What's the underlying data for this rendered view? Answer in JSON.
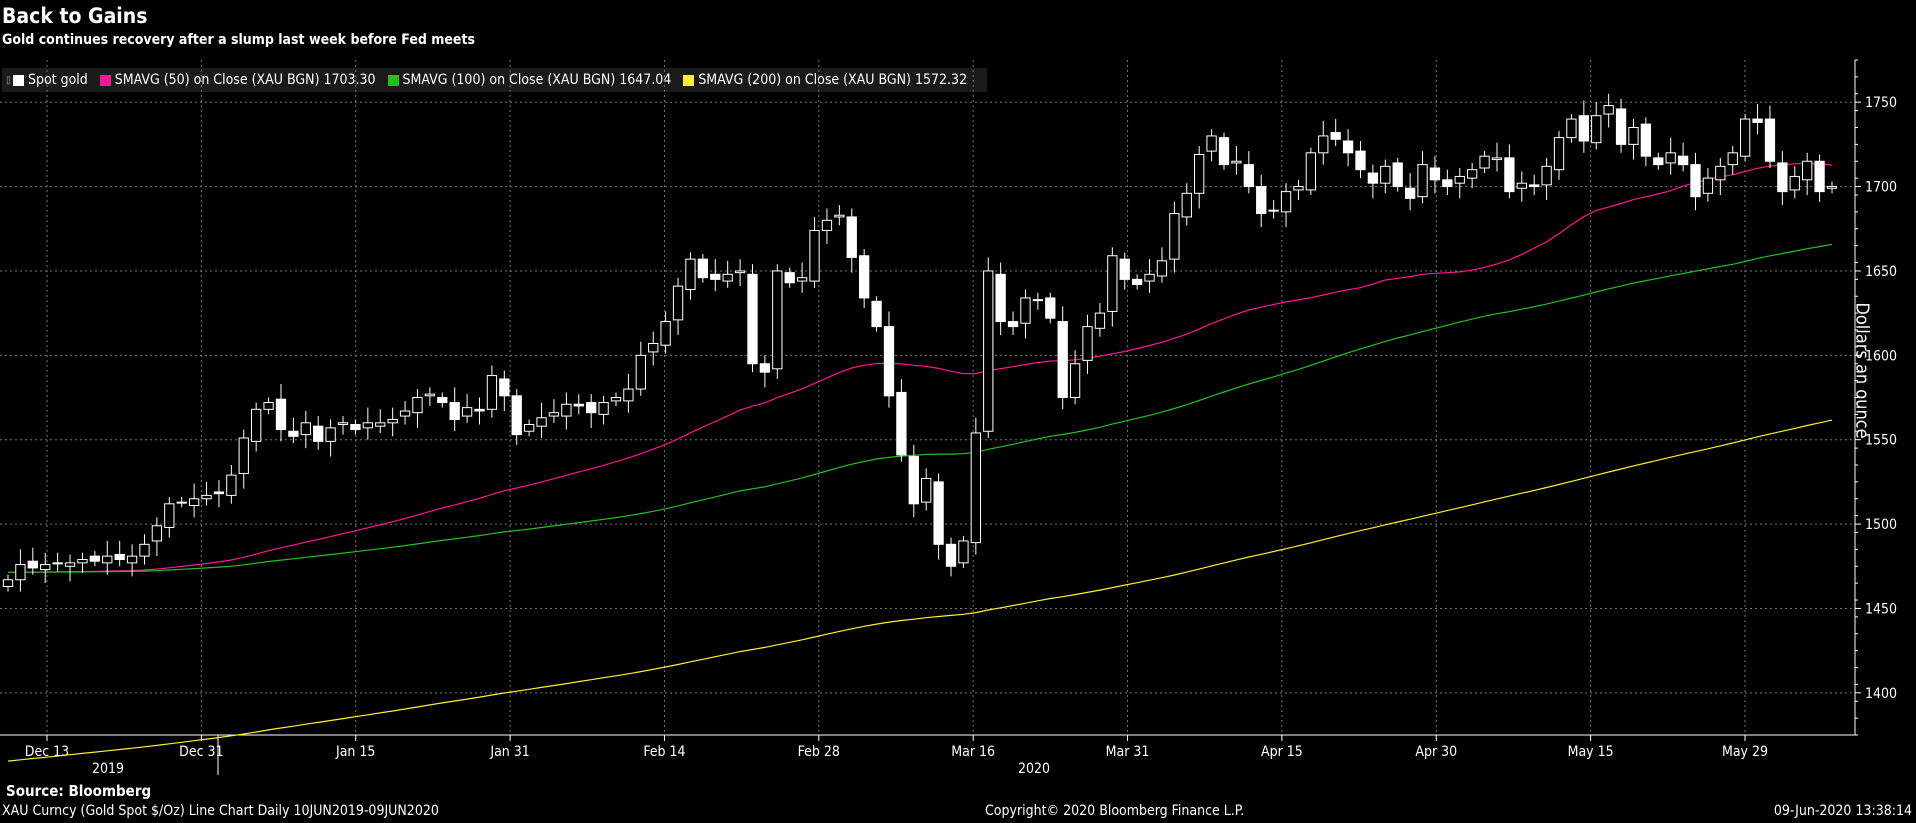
{
  "header": {
    "title": "Back to Gains",
    "subtitle": "Gold continues recovery after a slump last week before Fed meets"
  },
  "legend": [
    {
      "label": "Spot gold",
      "color": "#ffffff"
    },
    {
      "label": "SMAVG (50)  on Close (XAU BGN) 1703.30",
      "color": "#ff1493"
    },
    {
      "label": "SMAVG (100)  on Close (XAU BGN) 1647.04",
      "color": "#22c022"
    },
    {
      "label": "SMAVG (200)  on Close (XAU BGN) 1572.32",
      "color": "#ffee33"
    }
  ],
  "footer": {
    "source": "Source:  Bloomberg",
    "left": "XAU Curncy (Gold Spot   $/Oz) Line Chart  Daily 10JUN2019-09JUN2020",
    "center": "Copyright© 2020 Bloomberg Finance L.P.",
    "right": "09-Jun-2020 13:38:14"
  },
  "chart_data": {
    "type": "candlestick",
    "title": "Back to Gains",
    "ylabel": "Dollars an ounce",
    "ylim": [
      1375,
      1775
    ],
    "yticks": [
      1400,
      1450,
      1500,
      1550,
      1600,
      1650,
      1700,
      1750
    ],
    "xtick_labels": [
      "Dec 13",
      "Dec 31",
      "Jan 15",
      "Jan 31",
      "Feb 14",
      "Feb 28",
      "Mar 16",
      "Mar 31",
      "Apr 15",
      "Apr 30",
      "May 15",
      "May 29"
    ],
    "year_labels": [
      "2019",
      "2020"
    ],
    "grid": true,
    "legend_position": "top-left",
    "spot_gold_close": [
      1467,
      1476,
      1474,
      1476,
      1477,
      1477,
      1479,
      1478,
      1481,
      1479,
      1481,
      1488,
      1499,
      1512,
      1513,
      1515,
      1517,
      1518,
      1529,
      1551,
      1568,
      1572,
      1556,
      1552,
      1560,
      1549,
      1557,
      1560,
      1556,
      1560,
      1560,
      1562,
      1567,
      1575,
      1577,
      1572,
      1562,
      1569,
      1567,
      1588,
      1576,
      1553,
      1559,
      1563,
      1566,
      1571,
      1570,
      1566,
      1572,
      1575,
      1580,
      1600,
      1607,
      1620,
      1641,
      1657,
      1646,
      1645,
      1648,
      1650,
      1595,
      1590,
      1650,
      1643,
      1646,
      1674,
      1680,
      1683,
      1658,
      1634,
      1617,
      1576,
      1541,
      1512,
      1527,
      1488,
      1475,
      1490,
      1554,
      1650,
      1620,
      1617,
      1634,
      1633,
      1622,
      1575,
      1595,
      1617,
      1625,
      1659,
      1645,
      1642,
      1648,
      1656,
      1684,
      1696,
      1719,
      1730,
      1713,
      1715,
      1700,
      1684,
      1686,
      1697,
      1700,
      1720,
      1730,
      1728,
      1720,
      1710,
      1702,
      1712,
      1700,
      1693,
      1713,
      1704,
      1700,
      1706,
      1710,
      1718,
      1717,
      1697,
      1702,
      1700,
      1712,
      1729,
      1740,
      1727,
      1742,
      1748,
      1725,
      1735,
      1718,
      1713,
      1720,
      1713,
      1694,
      1705,
      1712,
      1720,
      1740,
      1738,
      1715,
      1697,
      1706,
      1715,
      1697,
      1700
    ]
  }
}
